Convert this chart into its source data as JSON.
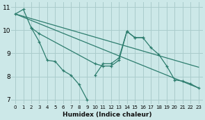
{
  "xlabel": "Humidex (Indice chaleur)",
  "bg_color": "#cce8e8",
  "grid_color": "#aacccc",
  "line_color": "#2d7d6e",
  "xlim": [
    -0.5,
    23.5
  ],
  "ylim": [
    6.8,
    11.2
  ],
  "yticks": [
    7,
    8,
    9,
    10,
    11
  ],
  "xticks": [
    0,
    1,
    2,
    3,
    4,
    5,
    6,
    7,
    8,
    9,
    10,
    11,
    12,
    13,
    14,
    15,
    16,
    17,
    18,
    19,
    20,
    21,
    22,
    23
  ],
  "series": [
    {
      "x": [
        0,
        1,
        2,
        3,
        4,
        5,
        6,
        7,
        8,
        9
      ],
      "y": [
        10.7,
        10.9,
        10.1,
        9.5,
        8.7,
        8.65,
        8.25,
        8.05,
        7.65,
        7.0
      ],
      "markers": true
    },
    {
      "x": [
        10,
        11,
        12,
        13,
        14,
        15,
        16
      ],
      "y": [
        8.05,
        8.55,
        8.55,
        8.8,
        9.95,
        9.68,
        9.68
      ],
      "markers": true
    },
    {
      "x": [
        2,
        3,
        10,
        11,
        12,
        13,
        14,
        15,
        16,
        17,
        18,
        19,
        20,
        21,
        22,
        23
      ],
      "y": [
        10.1,
        9.85,
        8.55,
        8.45,
        8.45,
        8.7,
        9.95,
        9.68,
        9.68,
        9.25,
        8.95,
        8.45,
        7.85,
        7.8,
        7.68,
        7.5
      ],
      "markers": true
    },
    {
      "x": [
        0,
        23
      ],
      "y": [
        10.7,
        8.4
      ],
      "markers": false
    },
    {
      "x": [
        0,
        23
      ],
      "y": [
        10.7,
        7.5
      ],
      "markers": false
    }
  ]
}
